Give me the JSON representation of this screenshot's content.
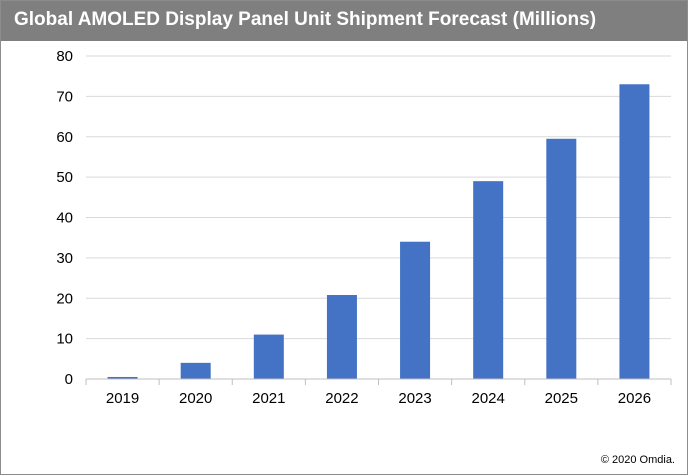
{
  "chart_data": {
    "type": "bar",
    "title": "Global AMOLED Display Panel Unit Shipment Forecast (Millions)",
    "categories": [
      "2019",
      "2020",
      "2021",
      "2022",
      "2023",
      "2024",
      "2025",
      "2026"
    ],
    "values": [
      0.5,
      4,
      11,
      20.8,
      34,
      49,
      59.5,
      73
    ],
    "xlabel": "",
    "ylabel": "",
    "ylim": [
      0,
      80
    ],
    "yticks": [
      "0",
      "10",
      "20",
      "30",
      "40",
      "50",
      "60",
      "70",
      "80"
    ],
    "grid": true,
    "legend": "none",
    "bar_color": "#4472c4"
  },
  "title_bar_color": "#7f7f7f",
  "credit": "© 2020 Omdia."
}
